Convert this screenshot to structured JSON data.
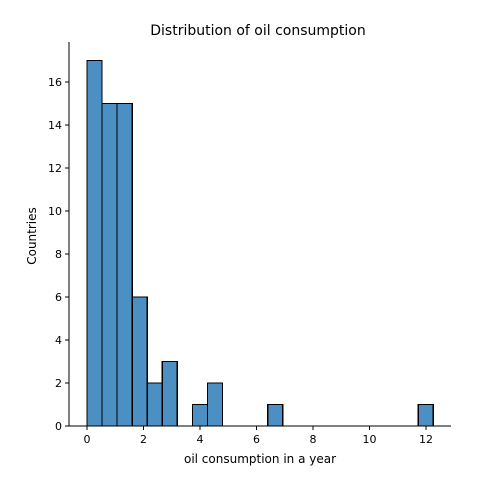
{
  "chart_data": {
    "type": "bar",
    "title": "Distribution of oil consumption",
    "xlabel": "oil consumption in a year",
    "ylabel": "Countries",
    "bar_color": "#4c8fc3",
    "xlim": [
      -0.6,
      12.8
    ],
    "ylim": [
      0,
      18
    ],
    "grid": false,
    "legend": "none",
    "x_ticks": [
      0,
      2,
      4,
      6,
      8,
      10,
      12
    ],
    "y_ticks": [
      0,
      2,
      4,
      6,
      8,
      10,
      12,
      14,
      16
    ],
    "bins": [
      {
        "x0": 0.0,
        "x1": 0.533,
        "value": 17
      },
      {
        "x0": 0.533,
        "x1": 1.066,
        "value": 15
      },
      {
        "x0": 1.066,
        "x1": 1.599,
        "value": 15
      },
      {
        "x0": 1.599,
        "x1": 2.132,
        "value": 6
      },
      {
        "x0": 2.132,
        "x1": 2.665,
        "value": 2
      },
      {
        "x0": 2.665,
        "x1": 3.198,
        "value": 3
      },
      {
        "x0": 3.198,
        "x1": 3.731,
        "value": 0
      },
      {
        "x0": 3.731,
        "x1": 4.264,
        "value": 1
      },
      {
        "x0": 4.264,
        "x1": 4.797,
        "value": 2
      },
      {
        "x0": 4.797,
        "x1": 5.33,
        "value": 0
      },
      {
        "x0": 5.33,
        "x1": 5.863,
        "value": 0
      },
      {
        "x0": 5.863,
        "x1": 6.396,
        "value": 0
      },
      {
        "x0": 6.396,
        "x1": 6.929,
        "value": 1
      },
      {
        "x0": 6.929,
        "x1": 7.462,
        "value": 0
      },
      {
        "x0": 7.462,
        "x1": 7.995,
        "value": 0
      },
      {
        "x0": 7.995,
        "x1": 8.528,
        "value": 0
      },
      {
        "x0": 8.528,
        "x1": 9.061,
        "value": 0
      },
      {
        "x0": 9.061,
        "x1": 9.594,
        "value": 0
      },
      {
        "x0": 9.594,
        "x1": 10.127,
        "value": 0
      },
      {
        "x0": 10.127,
        "x1": 10.66,
        "value": 0
      },
      {
        "x0": 10.66,
        "x1": 11.193,
        "value": 0
      },
      {
        "x0": 11.193,
        "x1": 11.726,
        "value": 0
      },
      {
        "x0": 11.726,
        "x1": 12.259,
        "value": 1
      }
    ]
  }
}
